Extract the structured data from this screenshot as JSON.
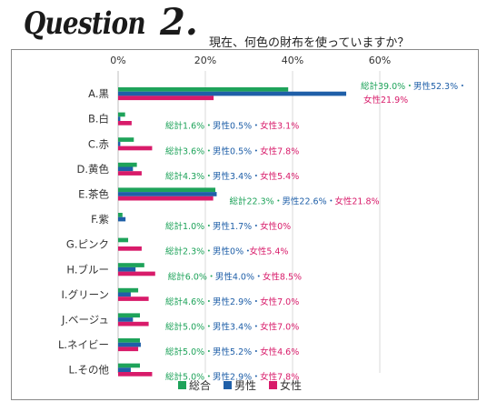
{
  "header": {
    "q_word": "Question",
    "q_number": "2.",
    "question_text": "現在、何色の財布を使っていますか？"
  },
  "chart_data": {
    "type": "bar",
    "categories": [
      "A.黒",
      "B.白",
      "C.赤",
      "D.黄色",
      "E.茶色",
      "F.紫",
      "G.ピンク",
      "H.ブルー",
      "I.グリーン",
      "J.ベージュ",
      "L.ネイビー",
      "L.その他"
    ],
    "series": [
      {
        "name": "総合",
        "color": "#1ea35a",
        "values": [
          39.0,
          1.6,
          3.6,
          4.3,
          22.3,
          1.0,
          2.3,
          6.0,
          4.6,
          5.0,
          5.0,
          5.0
        ]
      },
      {
        "name": "男性",
        "color": "#1f5fa8",
        "values": [
          52.3,
          0.5,
          0.5,
          3.4,
          22.6,
          1.7,
          0,
          4.0,
          2.9,
          3.4,
          5.2,
          2.9
        ]
      },
      {
        "name": "女性",
        "color": "#d81b6a",
        "values": [
          21.9,
          3.1,
          7.8,
          5.4,
          21.8,
          0,
          5.4,
          8.5,
          7.0,
          7.0,
          4.6,
          7.8
        ]
      }
    ],
    "data_labels": [
      {
        "total": "総計39.0%・",
        "male": "男性52.3%・",
        "female": "女性21.9%"
      },
      {
        "total": "総計1.6%・",
        "male": "男性0.5%・",
        "female": "女性3.1%"
      },
      {
        "total": "総計3.6%・",
        "male": "男性0.5%・",
        "female": "女性7.8%"
      },
      {
        "total": "総計4.3%・",
        "male": "男性3.4%・",
        "female": "女性5.4%"
      },
      {
        "total": "総計22.3%・",
        "male": "男性22.6%・",
        "female": "女性21.8%"
      },
      {
        "total": "総計1.0%・",
        "male": "男性1.7%・",
        "female": "女性0%"
      },
      {
        "total": "総計2.3%・",
        "male": "男性0%・",
        "female": "女性5.4%"
      },
      {
        "total": "総計6.0%・",
        "male": "男性4.0%・",
        "female": "女性8.5%"
      },
      {
        "total": "総計4.6%・",
        "male": "男性2.9%・",
        "female": "女性7.0%"
      },
      {
        "total": "総計5.0%・",
        "male": "男性3.4%・",
        "female": "女性7.0%"
      },
      {
        "total": "総計5.0%・",
        "male": "男性5.2%・",
        "female": "女性4.6%"
      },
      {
        "total": "総計5.0%・",
        "male": "男性2.9%・",
        "female": "女性7.8%"
      }
    ],
    "x_ticks": [
      "0%",
      "20%",
      "40%",
      "60%"
    ],
    "x_tick_values": [
      0,
      20,
      40,
      60
    ],
    "xlim": [
      0,
      60
    ],
    "grid": true,
    "legend_position": "bottom",
    "legend": [
      "総合",
      "男性",
      "女性"
    ]
  }
}
